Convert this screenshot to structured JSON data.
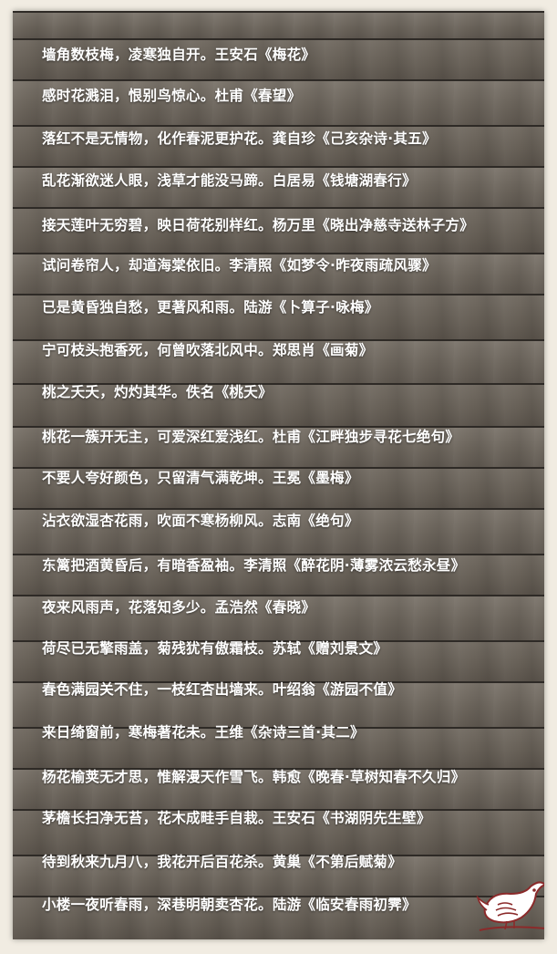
{
  "poems": [
    {
      "verse": "墙角数枝梅，凌寒独自开。",
      "source": "王安石《梅花》"
    },
    {
      "verse": "感时花溅泪，恨别鸟惊心。",
      "source": "杜甫《春望》"
    },
    {
      "verse": "落红不是无情物，化作春泥更护花。",
      "source": "龚自珍《己亥杂诗·其五》"
    },
    {
      "verse": "乱花渐欲迷人眼，浅草才能没马蹄。",
      "source": "白居易《钱塘湖春行》"
    },
    {
      "verse": "接天莲叶无穷碧，映日荷花别样红。",
      "source": "杨万里《晓出净慈寺送林子方》"
    },
    {
      "verse": "试问卷帘人，却道海棠依旧。",
      "source": "李清照《如梦令·昨夜雨疏风骤》"
    },
    {
      "verse": "已是黄昏独自愁，更著风和雨。",
      "source": "陆游《卜算子·咏梅》"
    },
    {
      "verse": "宁可枝头抱香死，何曾吹落北风中。",
      "source": "郑思肖《画菊》"
    },
    {
      "verse": "桃之夭夭，灼灼其华。",
      "source": "佚名《桃夭》"
    },
    {
      "verse": "桃花一簇开无主，可爱深红爱浅红。",
      "source": "杜甫《江畔独步寻花七绝句》"
    },
    {
      "verse": "不要人夸好颜色，只留清气满乾坤。",
      "source": "王冕《墨梅》"
    },
    {
      "verse": "沾衣欲湿杏花雨，吹面不寒杨柳风。",
      "source": "志南《绝句》"
    },
    {
      "verse": "东篱把酒黄昏后，有暗香盈袖。",
      "source": "李清照《醉花阴·薄雾浓云愁永昼》"
    },
    {
      "verse": "夜来风雨声，花落知多少。",
      "source": "孟浩然《春晓》"
    },
    {
      "verse": "荷尽已无擎雨盖，菊残犹有傲霜枝。",
      "source": "苏轼《赠刘景文》"
    },
    {
      "verse": "春色满园关不住，一枝红杏出墙来。",
      "source": "叶绍翁《游园不值》"
    },
    {
      "verse": "来日绮窗前，寒梅著花未。",
      "source": "王维《杂诗三首·其二》"
    },
    {
      "verse": "杨花榆荚无才思，惟解漫天作雪飞。",
      "source": "韩愈《晚春·草树知春不久归》"
    },
    {
      "verse": "茅檐长扫净无苔，花木成畦手自栽。",
      "source": "王安石《书湖阴先生壁》"
    },
    {
      "verse": "待到秋来九月八，我花开后百花杀。",
      "source": "黄巢《不第后赋菊》"
    },
    {
      "verse": "小楼一夜听春雨，深巷明朝卖杏花。",
      "source": "陆游《临安春雨初霁》"
    }
  ],
  "colors": {
    "text": "#ffffff",
    "wood": "#6b645b",
    "frame": "#f1ece2",
    "bird_accent": "#8b2a2a"
  },
  "icons": {
    "bird": "bird-icon"
  }
}
